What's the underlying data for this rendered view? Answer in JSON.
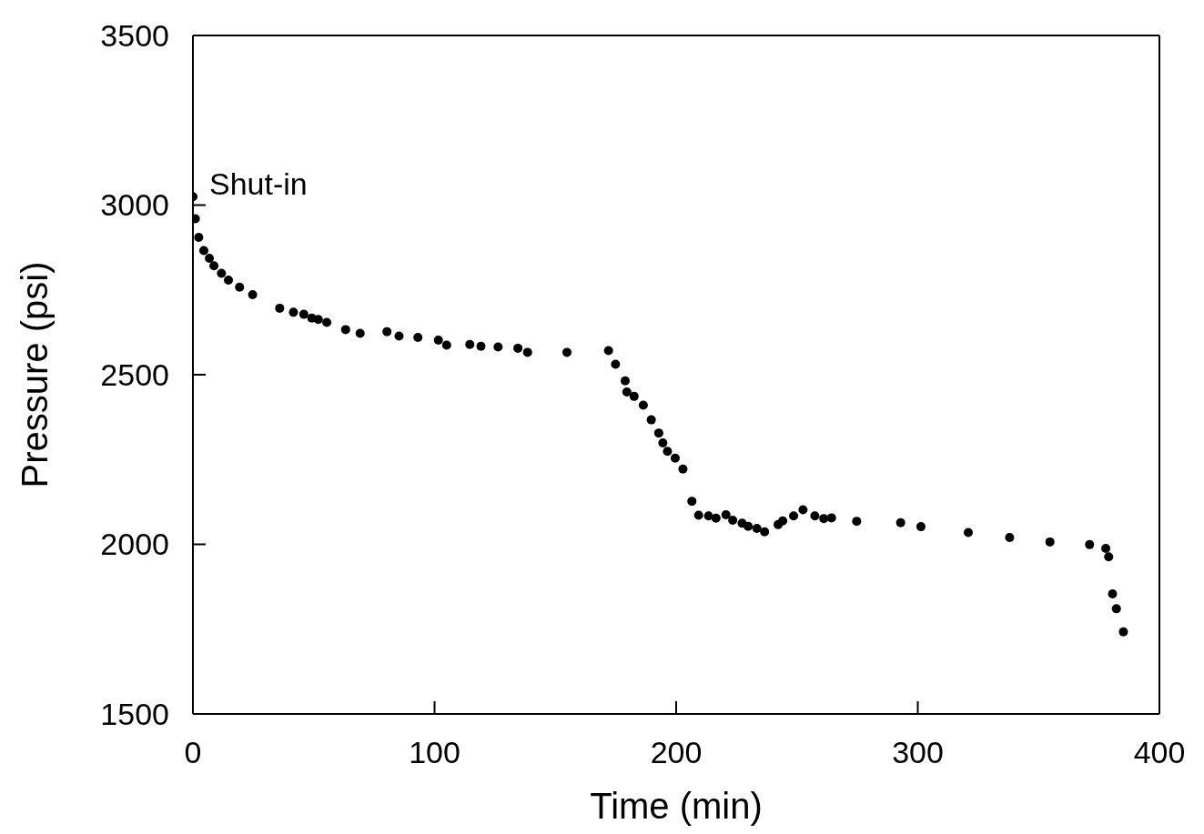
{
  "chart_data": {
    "type": "scatter",
    "xlabel": "Time (min)",
    "ylabel": "Pressure (psi)",
    "xlim": [
      0,
      400
    ],
    "xticks": [
      0,
      100,
      200,
      300,
      400
    ],
    "ylim": [
      1500,
      3500
    ],
    "yticks": [
      1500,
      2000,
      2500,
      3000,
      3500
    ],
    "marker": "circle",
    "annotations": [
      {
        "text": "Shut-in",
        "x": 0,
        "y": 3025
      }
    ],
    "series": [
      {
        "color": "#000000",
        "x": [
          0,
          1,
          2.4,
          4.5,
          6.8,
          8.7,
          11.8,
          14.7,
          19.3,
          24.7,
          35.9,
          41.6,
          45.9,
          49.2,
          51.9,
          55.4,
          63.2,
          69.2,
          80.3,
          85.3,
          93.1,
          101.6,
          105,
          114.6,
          119.2,
          126.3,
          134.5,
          138.5,
          154.8,
          172,
          174.9,
          178.9,
          179.6,
          182.6,
          186.4,
          189.7,
          192.8,
          194.5,
          196.4,
          199.6,
          202.8,
          206.5,
          209.3,
          213.4,
          216.5,
          220.6,
          223.4,
          227.3,
          229.8,
          233.4,
          236.6,
          242.2,
          244.1,
          248.6,
          252.5,
          257.4,
          261.1,
          264.3,
          274.7,
          292.9,
          301.3,
          320.9,
          338,
          354.7,
          371.1,
          377.8,
          379,
          380.6,
          382.2,
          385.1
        ],
        "values": [
          3025,
          2960,
          2905,
          2866,
          2843,
          2821,
          2799,
          2779,
          2758,
          2736,
          2696,
          2684,
          2678,
          2667,
          2663,
          2654,
          2633,
          2622,
          2627,
          2614,
          2610,
          2602,
          2587,
          2589,
          2584,
          2582,
          2578,
          2566,
          2566,
          2571,
          2531,
          2482,
          2449,
          2436,
          2410,
          2367,
          2328,
          2299,
          2274,
          2254,
          2222,
          2127,
          2086,
          2084,
          2077,
          2087,
          2071,
          2062,
          2053,
          2047,
          2037,
          2058,
          2069,
          2084,
          2102,
          2084,
          2076,
          2078,
          2068,
          2064,
          2052,
          2035,
          2020,
          2007,
          1999,
          1988,
          1963,
          1854,
          1810,
          1742
        ]
      }
    ]
  }
}
